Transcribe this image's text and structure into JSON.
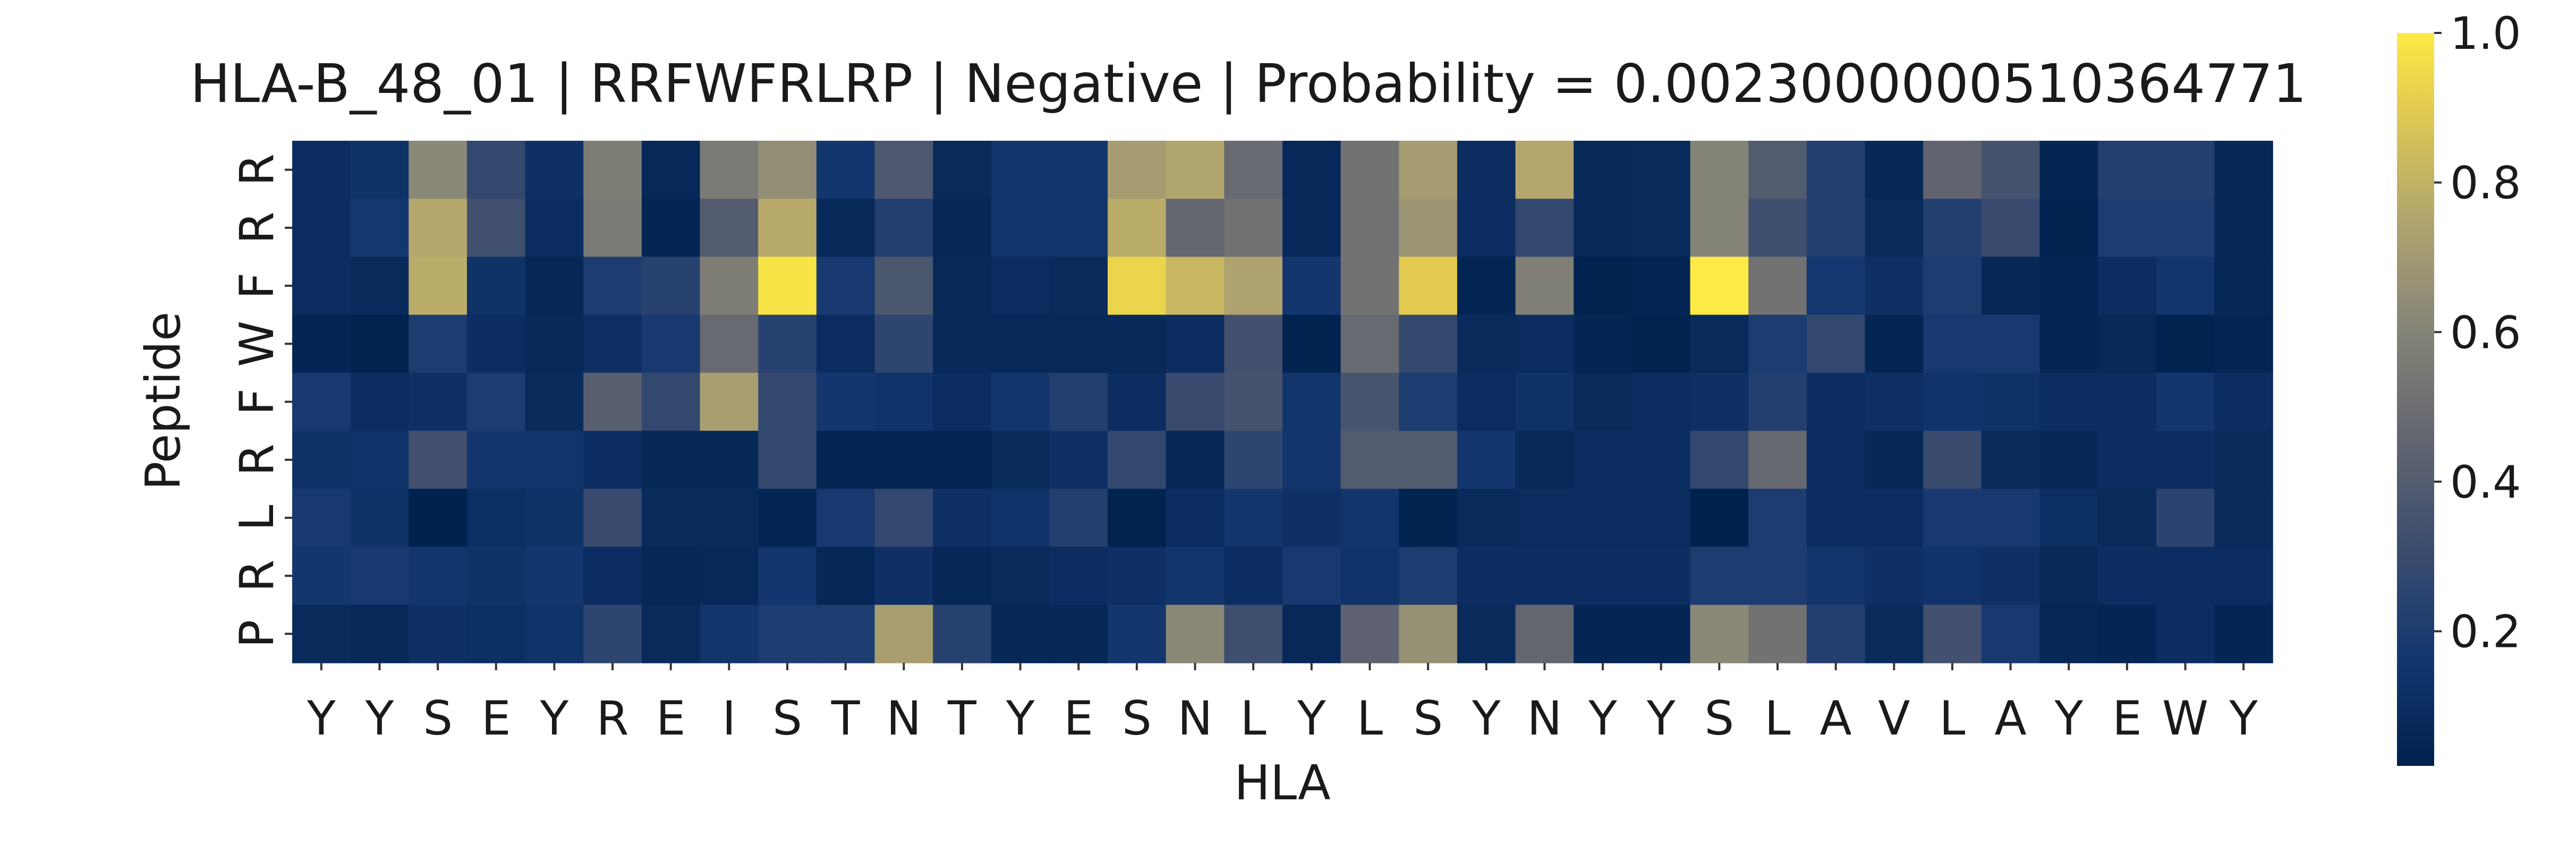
{
  "chart_data": {
    "type": "heatmap",
    "title": "HLA-B_48_01 | RRFWFRLRP | Negative | Probability = 0.0023000000510364771",
    "xlabel": "HLA",
    "ylabel": "Peptide",
    "x_labels": [
      "Y",
      "Y",
      "S",
      "E",
      "Y",
      "R",
      "E",
      "I",
      "S",
      "T",
      "N",
      "T",
      "Y",
      "E",
      "S",
      "N",
      "L",
      "Y",
      "L",
      "S",
      "Y",
      "N",
      "Y",
      "Y",
      "S",
      "L",
      "A",
      "V",
      "L",
      "A",
      "Y",
      "E",
      "W",
      "Y"
    ],
    "y_labels": [
      "R",
      "R",
      "F",
      "W",
      "F",
      "R",
      "L",
      "R",
      "P"
    ],
    "colormap": "cividis",
    "colorbar": {
      "ticks": [
        0.2,
        0.4,
        0.6,
        0.8,
        1.0
      ],
      "range": [
        0.02,
        1.0
      ]
    },
    "values": [
      [
        0.1,
        0.13,
        0.62,
        0.28,
        0.12,
        0.57,
        0.07,
        0.56,
        0.65,
        0.16,
        0.38,
        0.08,
        0.15,
        0.15,
        0.71,
        0.75,
        0.48,
        0.07,
        0.52,
        0.71,
        0.1,
        0.76,
        0.07,
        0.08,
        0.6,
        0.4,
        0.22,
        0.06,
        0.45,
        0.35,
        0.05,
        0.22,
        0.22,
        0.06
      ],
      [
        0.09,
        0.17,
        0.76,
        0.33,
        0.1,
        0.55,
        0.05,
        0.4,
        0.77,
        0.07,
        0.22,
        0.06,
        0.15,
        0.15,
        0.78,
        0.46,
        0.52,
        0.07,
        0.52,
        0.68,
        0.1,
        0.28,
        0.07,
        0.08,
        0.6,
        0.32,
        0.22,
        0.08,
        0.22,
        0.3,
        0.03,
        0.2,
        0.2,
        0.06
      ],
      [
        0.09,
        0.08,
        0.78,
        0.13,
        0.06,
        0.2,
        0.24,
        0.57,
        0.98,
        0.18,
        0.37,
        0.07,
        0.09,
        0.08,
        0.93,
        0.82,
        0.74,
        0.16,
        0.52,
        0.9,
        0.04,
        0.58,
        0.03,
        0.04,
        1.0,
        0.52,
        0.17,
        0.12,
        0.2,
        0.06,
        0.05,
        0.1,
        0.15,
        0.06
      ],
      [
        0.05,
        0.03,
        0.2,
        0.1,
        0.07,
        0.12,
        0.18,
        0.48,
        0.24,
        0.09,
        0.26,
        0.07,
        0.07,
        0.07,
        0.07,
        0.09,
        0.34,
        0.03,
        0.48,
        0.29,
        0.08,
        0.09,
        0.05,
        0.03,
        0.08,
        0.2,
        0.28,
        0.05,
        0.18,
        0.18,
        0.05,
        0.07,
        0.03,
        0.05
      ],
      [
        0.18,
        0.1,
        0.12,
        0.2,
        0.08,
        0.42,
        0.28,
        0.72,
        0.29,
        0.16,
        0.14,
        0.09,
        0.16,
        0.22,
        0.1,
        0.3,
        0.35,
        0.15,
        0.36,
        0.2,
        0.09,
        0.13,
        0.08,
        0.1,
        0.12,
        0.22,
        0.1,
        0.12,
        0.14,
        0.13,
        0.1,
        0.1,
        0.16,
        0.1
      ],
      [
        0.13,
        0.14,
        0.34,
        0.16,
        0.15,
        0.1,
        0.06,
        0.06,
        0.28,
        0.04,
        0.04,
        0.04,
        0.08,
        0.12,
        0.28,
        0.06,
        0.26,
        0.16,
        0.4,
        0.4,
        0.16,
        0.07,
        0.1,
        0.1,
        0.28,
        0.47,
        0.1,
        0.06,
        0.3,
        0.08,
        0.06,
        0.1,
        0.1,
        0.08
      ],
      [
        0.18,
        0.13,
        0.02,
        0.11,
        0.13,
        0.3,
        0.08,
        0.08,
        0.05,
        0.18,
        0.28,
        0.12,
        0.14,
        0.22,
        0.03,
        0.1,
        0.16,
        0.12,
        0.15,
        0.03,
        0.08,
        0.09,
        0.09,
        0.09,
        0.02,
        0.2,
        0.09,
        0.1,
        0.18,
        0.18,
        0.11,
        0.08,
        0.25,
        0.08
      ],
      [
        0.16,
        0.18,
        0.15,
        0.13,
        0.16,
        0.1,
        0.06,
        0.07,
        0.16,
        0.06,
        0.12,
        0.06,
        0.08,
        0.1,
        0.12,
        0.15,
        0.1,
        0.18,
        0.14,
        0.2,
        0.1,
        0.1,
        0.1,
        0.1,
        0.2,
        0.2,
        0.15,
        0.12,
        0.14,
        0.12,
        0.07,
        0.1,
        0.1,
        0.09
      ],
      [
        0.08,
        0.07,
        0.12,
        0.11,
        0.14,
        0.26,
        0.08,
        0.15,
        0.2,
        0.2,
        0.72,
        0.24,
        0.06,
        0.06,
        0.16,
        0.62,
        0.32,
        0.07,
        0.44,
        0.66,
        0.08,
        0.46,
        0.05,
        0.05,
        0.62,
        0.52,
        0.22,
        0.08,
        0.34,
        0.18,
        0.06,
        0.05,
        0.1,
        0.05
      ]
    ]
  }
}
